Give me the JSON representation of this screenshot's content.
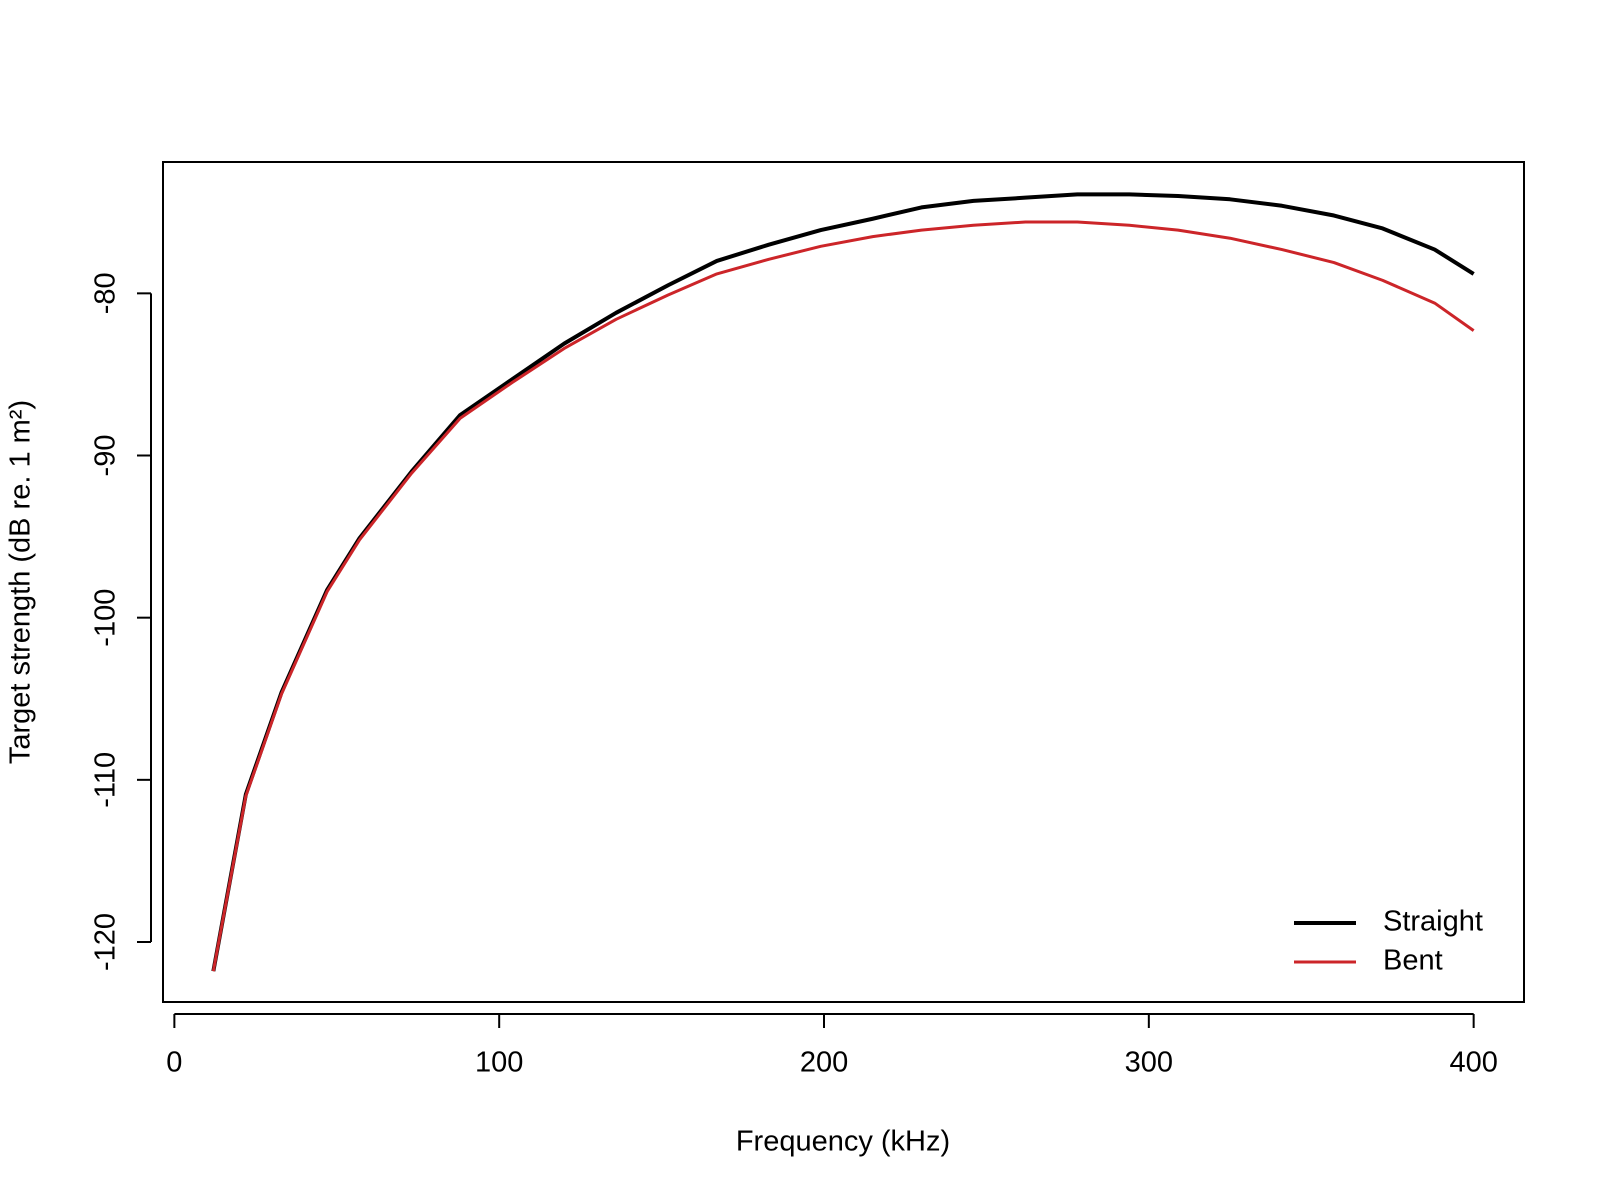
{
  "chart_data": {
    "type": "line",
    "xlabel": "Frequency (kHz)",
    "ylabel": "Target strength (dB re. 1 m²)",
    "x": [
      12,
      22,
      33,
      47,
      57,
      73,
      88,
      104,
      120,
      136,
      152,
      167,
      183,
      199,
      215,
      230,
      246,
      262,
      278,
      294,
      309,
      325,
      341,
      357,
      372,
      388,
      400
    ],
    "series": [
      {
        "name": "Straight",
        "color": "#000000",
        "values": [
          -121.8,
          -110.9,
          -104.6,
          -98.3,
          -95.1,
          -91.0,
          -87.5,
          -85.3,
          -83.1,
          -81.2,
          -79.5,
          -78.0,
          -77.0,
          -76.1,
          -75.4,
          -74.7,
          -74.3,
          -74.1,
          -73.9,
          -73.9,
          -74.0,
          -74.2,
          -74.6,
          -75.2,
          -76.0,
          -77.3,
          -78.8
        ]
      },
      {
        "name": "Bent",
        "color": "#cc2529",
        "values": [
          -121.8,
          -111.0,
          -104.7,
          -98.4,
          -95.2,
          -91.1,
          -87.7,
          -85.5,
          -83.4,
          -81.6,
          -80.1,
          -78.8,
          -77.9,
          -77.1,
          -76.5,
          -76.1,
          -75.8,
          -75.6,
          -75.6,
          -75.8,
          -76.1,
          -76.6,
          -77.3,
          -78.1,
          -79.2,
          -80.6,
          -82.3
        ]
      }
    ],
    "xlim": [
      -3.5,
      415.5
    ],
    "xticks": [
      0,
      100,
      200,
      300,
      400
    ],
    "ylim": [
      -123.7,
      -71.9
    ],
    "yticks": [
      -120,
      -110,
      -100,
      -90,
      -80
    ],
    "legend": "bottom-right",
    "grid": false
  }
}
